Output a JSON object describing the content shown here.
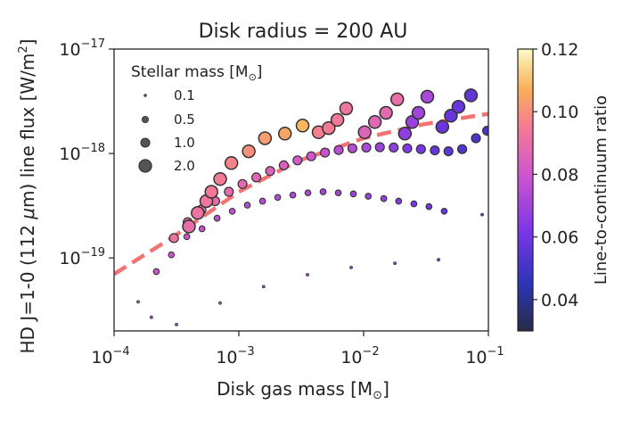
{
  "chart_data": {
    "type": "scatter",
    "title": "Disk radius = 200 AU",
    "xlabel_prefix": "Disk gas mass [M",
    "xlabel_suffix": "]",
    "ylabel_main": "HD J=1-0 (112 ",
    "ylabel_mu": "μ",
    "ylabel_m": "m) line flux [W/m",
    "ylabel_sq": "2",
    "ylabel_end": "]",
    "x_scale": "log",
    "y_scale": "log",
    "xlim": [
      0.0001,
      0.1
    ],
    "ylim": [
      2e-20,
      1e-17
    ],
    "x_ticks": [
      {
        "value": 0.0001,
        "base": "10",
        "exp": "−4"
      },
      {
        "value": 0.001,
        "base": "10",
        "exp": "−3"
      },
      {
        "value": 0.01,
        "base": "10",
        "exp": "−2"
      },
      {
        "value": 0.1,
        "base": "10",
        "exp": "−1"
      }
    ],
    "y_ticks": [
      {
        "value": 1e-19,
        "base": "10",
        "exp": "−19"
      },
      {
        "value": 1e-18,
        "base": "10",
        "exp": "−18"
      },
      {
        "value": 1e-17,
        "base": "10",
        "exp": "−17"
      }
    ],
    "legend": {
      "title_prefix": "Stellar mass [M",
      "title_suffix": "]",
      "position": "top-left",
      "entries": [
        "0.1",
        "0.5",
        "1.0",
        "2.0"
      ]
    },
    "colorbar": {
      "label": "Line-to-continuum ratio",
      "range": [
        0.03,
        0.12
      ],
      "ticks": [
        "0.04",
        "0.06",
        "0.08",
        "0.10",
        "0.12"
      ],
      "colormap": "plasma-like"
    },
    "trend_line": {
      "style": "dashed",
      "color": "#f06464",
      "points": [
        [
          0.0001,
          7e-20
        ],
        [
          0.0003,
          1.6e-19
        ],
        [
          0.001,
          4.3e-19
        ],
        [
          0.003,
          8.5e-19
        ],
        [
          0.01,
          1.4e-18
        ],
        [
          0.03,
          1.9e-18
        ],
        [
          0.1,
          2.4e-18
        ]
      ]
    },
    "series": [
      {
        "name": "0.1",
        "points": [
          {
            "x": 0.000156,
            "y": 3.8e-20,
            "c": 0.075
          },
          {
            "x": 0.000199,
            "y": 2.7e-20,
            "c": 0.075
          },
          {
            "x": 0.000316,
            "y": 2.3e-20,
            "c": 0.072
          },
          {
            "x": 0.000708,
            "y": 3.7e-20,
            "c": 0.075
          },
          {
            "x": 0.00158,
            "y": 5.3e-20,
            "c": 0.073
          },
          {
            "x": 0.00355,
            "y": 6.9e-20,
            "c": 0.07
          },
          {
            "x": 0.00794,
            "y": 8.1e-20,
            "c": 0.068
          },
          {
            "x": 0.0178,
            "y": 8.9e-20,
            "c": 0.065
          },
          {
            "x": 0.0398,
            "y": 9.6e-20,
            "c": 0.062
          },
          {
            "x": 0.0891,
            "y": 2.6e-19,
            "c": 0.055
          }
        ]
      },
      {
        "name": "0.5",
        "points": [
          {
            "x": 0.000218,
            "y": 7.4e-20,
            "c": 0.079
          },
          {
            "x": 0.000288,
            "y": 1.07e-19,
            "c": 0.08
          },
          {
            "x": 0.000383,
            "y": 1.6e-19,
            "c": 0.079
          },
          {
            "x": 0.000507,
            "y": 1.9e-19,
            "c": 0.078
          },
          {
            "x": 0.000669,
            "y": 2.4e-19,
            "c": 0.077
          },
          {
            "x": 0.000885,
            "y": 2.8e-19,
            "c": 0.076
          },
          {
            "x": 0.00117,
            "y": 3.2e-19,
            "c": 0.075
          },
          {
            "x": 0.00155,
            "y": 3.5e-19,
            "c": 0.075
          },
          {
            "x": 0.00205,
            "y": 3.8e-19,
            "c": 0.074
          },
          {
            "x": 0.00271,
            "y": 4e-19,
            "c": 0.073
          },
          {
            "x": 0.00358,
            "y": 4.2e-19,
            "c": 0.072
          },
          {
            "x": 0.00473,
            "y": 4.3e-19,
            "c": 0.071
          },
          {
            "x": 0.00626,
            "y": 4.2e-19,
            "c": 0.07
          },
          {
            "x": 0.00827,
            "y": 4.1e-19,
            "c": 0.069
          },
          {
            "x": 0.0109,
            "y": 3.9e-19,
            "c": 0.068
          },
          {
            "x": 0.0145,
            "y": 3.7e-19,
            "c": 0.066
          },
          {
            "x": 0.0191,
            "y": 3.5e-19,
            "c": 0.064
          },
          {
            "x": 0.0253,
            "y": 3.3e-19,
            "c": 0.062
          },
          {
            "x": 0.0334,
            "y": 3.1e-19,
            "c": 0.06
          },
          {
            "x": 0.0442,
            "y": 2.8e-19,
            "c": 0.058
          }
        ]
      },
      {
        "name": "1.0",
        "points": [
          {
            "x": 0.000302,
            "y": 1.55e-19,
            "c": 0.092
          },
          {
            "x": 0.000389,
            "y": 2.2e-19,
            "c": 0.091
          },
          {
            "x": 0.000501,
            "y": 2.9e-19,
            "c": 0.09
          },
          {
            "x": 0.000646,
            "y": 3.5e-19,
            "c": 0.089
          },
          {
            "x": 0.000832,
            "y": 4.3e-19,
            "c": 0.089
          },
          {
            "x": 0.00107,
            "y": 5.1e-19,
            "c": 0.088
          },
          {
            "x": 0.00138,
            "y": 5.9e-19,
            "c": 0.087
          },
          {
            "x": 0.00178,
            "y": 6.8e-19,
            "c": 0.085
          },
          {
            "x": 0.00229,
            "y": 7.7e-19,
            "c": 0.084
          },
          {
            "x": 0.00295,
            "y": 8.6e-19,
            "c": 0.082
          },
          {
            "x": 0.0038,
            "y": 9.4e-19,
            "c": 0.08
          },
          {
            "x": 0.0049,
            "y": 1.02e-18,
            "c": 0.078
          },
          {
            "x": 0.00631,
            "y": 1.08e-18,
            "c": 0.076
          },
          {
            "x": 0.00813,
            "y": 1.12e-18,
            "c": 0.074
          },
          {
            "x": 0.0105,
            "y": 1.14e-18,
            "c": 0.072
          },
          {
            "x": 0.0135,
            "y": 1.15e-18,
            "c": 0.069
          },
          {
            "x": 0.0174,
            "y": 1.14e-18,
            "c": 0.066
          },
          {
            "x": 0.0224,
            "y": 1.12e-18,
            "c": 0.063
          },
          {
            "x": 0.0288,
            "y": 1.1e-18,
            "c": 0.06
          },
          {
            "x": 0.0372,
            "y": 1.07e-18,
            "c": 0.057
          },
          {
            "x": 0.0479,
            "y": 1.05e-18,
            "c": 0.055
          },
          {
            "x": 0.0617,
            "y": 1.1e-18,
            "c": 0.053
          },
          {
            "x": 0.0794,
            "y": 1.4e-18,
            "c": 0.051
          },
          {
            "x": 0.0977,
            "y": 1.65e-18,
            "c": 0.05
          }
        ]
      },
      {
        "name": "2.0",
        "points": [
          {
            "x": 0.000398,
            "y": 2e-19,
            "c": 0.09
          },
          {
            "x": 0.000468,
            "y": 2.7e-19,
            "c": 0.092
          },
          {
            "x": 0.000549,
            "y": 3.5e-19,
            "c": 0.093
          },
          {
            "x": 0.000603,
            "y": 4.3e-19,
            "c": 0.094
          },
          {
            "x": 0.000708,
            "y": 5.7e-19,
            "c": 0.095
          },
          {
            "x": 0.000871,
            "y": 8.1e-19,
            "c": 0.097
          },
          {
            "x": 0.0012,
            "y": 1.05e-18,
            "c": 0.1
          },
          {
            "x": 0.00162,
            "y": 1.4e-18,
            "c": 0.103
          },
          {
            "x": 0.00234,
            "y": 1.55e-18,
            "c": 0.105
          },
          {
            "x": 0.00324,
            "y": 1.85e-18,
            "c": 0.108
          },
          {
            "x": 0.00436,
            "y": 1.6e-18,
            "c": 0.096
          },
          {
            "x": 0.00525,
            "y": 1.75e-18,
            "c": 0.095
          },
          {
            "x": 0.00617,
            "y": 2.1e-18,
            "c": 0.094
          },
          {
            "x": 0.00724,
            "y": 2.7e-18,
            "c": 0.093
          },
          {
            "x": 0.0102,
            "y": 1.6e-18,
            "c": 0.086
          },
          {
            "x": 0.0123,
            "y": 2e-18,
            "c": 0.087
          },
          {
            "x": 0.0151,
            "y": 2.45e-18,
            "c": 0.088
          },
          {
            "x": 0.0186,
            "y": 3.3e-18,
            "c": 0.09
          },
          {
            "x": 0.0214,
            "y": 1.55e-18,
            "c": 0.066
          },
          {
            "x": 0.0245,
            "y": 2e-18,
            "c": 0.068
          },
          {
            "x": 0.0275,
            "y": 2.45e-18,
            "c": 0.07
          },
          {
            "x": 0.0324,
            "y": 3.5e-18,
            "c": 0.072
          },
          {
            "x": 0.0427,
            "y": 1.8e-18,
            "c": 0.058
          },
          {
            "x": 0.05,
            "y": 2.3e-18,
            "c": 0.058
          },
          {
            "x": 0.0575,
            "y": 2.8e-18,
            "c": 0.058
          },
          {
            "x": 0.0724,
            "y": 3.6e-18,
            "c": 0.056
          }
        ]
      }
    ]
  }
}
